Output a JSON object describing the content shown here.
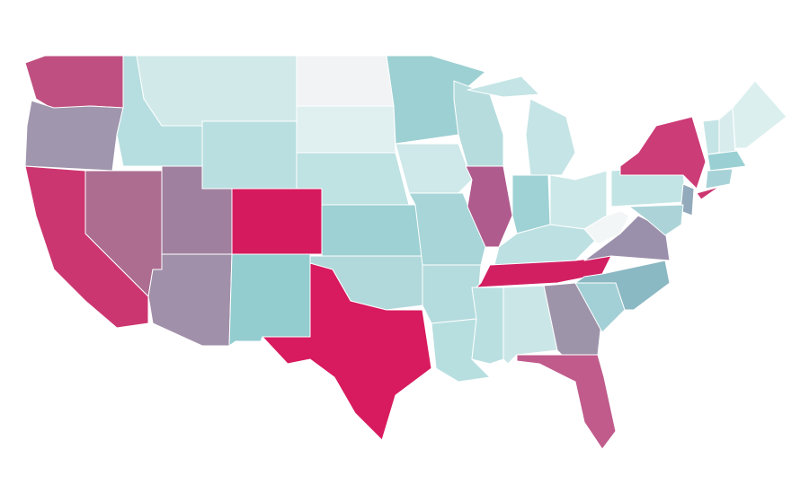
{
  "map": {
    "type": "choropleth",
    "border_color": "#ffffff",
    "background": "#ffffff",
    "regions": [
      {
        "color": "#bf4f80"
      },
      {
        "color": "#a096ad"
      },
      {
        "color": "#cc3670"
      },
      {
        "color": "#ac6d91"
      },
      {
        "color": "#b6dee0"
      },
      {
        "color": "#d2e9ea"
      },
      {
        "color": "#b9dfe0"
      },
      {
        "color": "#a0809f"
      },
      {
        "color": "#a190aa"
      },
      {
        "color": "#d61a5e"
      },
      {
        "color": "#93cdd0"
      },
      {
        "color": "#f2f3f4"
      },
      {
        "color": "#e0eff0"
      },
      {
        "color": "#bfe2e3"
      },
      {
        "color": "#9dd1d3"
      },
      {
        "color": "#b1d9dc"
      },
      {
        "color": "#d81a5e"
      },
      {
        "color": "#9dd0d3"
      },
      {
        "color": "#cfe8e9"
      },
      {
        "color": "#a7d5d8"
      },
      {
        "color": "#b4dbdd"
      },
      {
        "color": "#b8dfe0"
      },
      {
        "color": "#b6dcde"
      },
      {
        "color": "#b05b8d"
      },
      {
        "color": "#c5e4e5"
      },
      {
        "color": "#c5e4e5"
      },
      {
        "color": "#9fd2d5"
      },
      {
        "color": "#cde8e9"
      },
      {
        "color": "#bde0e2"
      },
      {
        "color": "#d21f62"
      },
      {
        "color": "#b9dfe1"
      },
      {
        "color": "#cbe6e7"
      },
      {
        "color": "#9e94aa"
      },
      {
        "color": "#c05b8c"
      },
      {
        "color": "#a3d0d6"
      },
      {
        "color": "#8ab8c3"
      },
      {
        "color": "#9b90ab"
      },
      {
        "color": "#f3f6f6"
      },
      {
        "color": "#c3e4e5"
      },
      {
        "color": "#cc3c76"
      },
      {
        "color": "#92aabb"
      },
      {
        "color": "#acd4d8"
      },
      {
        "color": "#c5e4e6"
      },
      {
        "color": "#d8ecee"
      },
      {
        "color": "#dcefef"
      },
      {
        "color": "#9ad0d3"
      },
      {
        "color": "#a7d3d8"
      },
      {
        "color": "#cc3670"
      }
    ]
  }
}
